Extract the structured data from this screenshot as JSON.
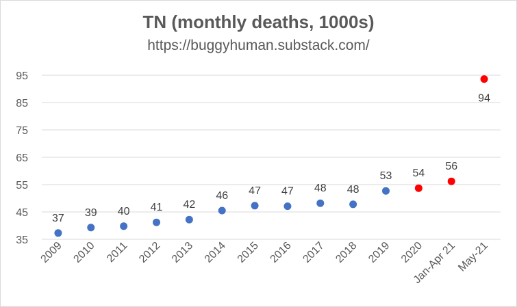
{
  "chart_data": {
    "type": "scatter",
    "title": "TN (monthly deaths, 1000s)",
    "subtitle": "https://buggyhuman.substack.com/",
    "xlabel": "",
    "ylabel": "",
    "categories": [
      "2009",
      "2010",
      "2011",
      "2012",
      "2013",
      "2014",
      "2015",
      "2016",
      "2017",
      "2018",
      "2019",
      "2020",
      "Jan-Apr 21",
      "May-21"
    ],
    "values": [
      37.3,
      39.3,
      39.8,
      41.2,
      42.2,
      45.5,
      47.3,
      47.1,
      48.2,
      47.8,
      52.7,
      53.7,
      56.2,
      93.6
    ],
    "data_labels": [
      "37",
      "39",
      "40",
      "41",
      "42",
      "46",
      "47",
      "47",
      "48",
      "48",
      "53",
      "54",
      "56",
      "94"
    ],
    "point_colors": [
      "#4472c4",
      "#4472c4",
      "#4472c4",
      "#4472c4",
      "#4472c4",
      "#4472c4",
      "#4472c4",
      "#4472c4",
      "#4472c4",
      "#4472c4",
      "#4472c4",
      "#ff0000",
      "#ff0000",
      "#ff0000"
    ],
    "label_position": [
      "above",
      "above",
      "above",
      "above",
      "above",
      "above",
      "above",
      "above",
      "above",
      "above",
      "above",
      "above",
      "above",
      "below"
    ],
    "yticks": [
      "35",
      "45",
      "55",
      "65",
      "75",
      "85",
      "95"
    ],
    "ylim": [
      35,
      95
    ],
    "grid": true,
    "legend": "none"
  }
}
